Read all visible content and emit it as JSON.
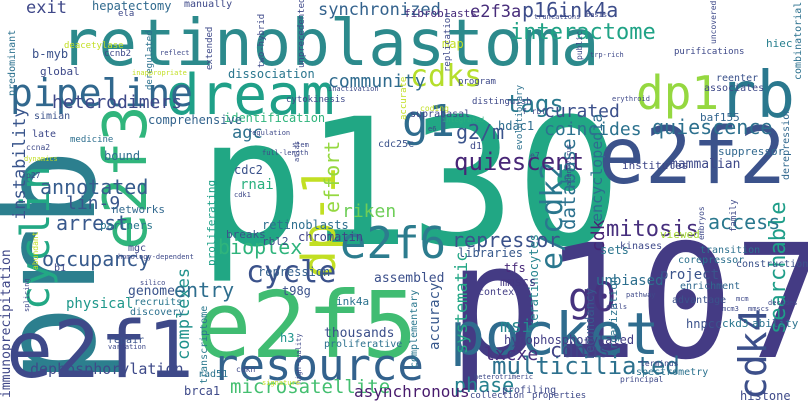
{
  "word_cloud": {
    "words": [
      {
        "text": "p130",
        "color": "#21a784"
      },
      {
        "text": "retinoblastoma",
        "color": "#2c8a8c"
      },
      {
        "text": "p107",
        "color": "#443b84"
      },
      {
        "text": "prb",
        "color": "#2c7f8e"
      },
      {
        "text": "e2f5",
        "color": "#40bc72"
      },
      {
        "text": "e2f2",
        "color": "#3b528b"
      },
      {
        "text": "e2f1",
        "color": "#3e4989"
      },
      {
        "text": "pocket",
        "color": "#2f6c8e"
      },
      {
        "text": "rb",
        "color": "#2a788e"
      },
      {
        "text": "dream",
        "color": "#1fa088"
      },
      {
        "text": "resource",
        "color": "#33628d"
      },
      {
        "text": "e2f3",
        "color": "#30b57c"
      },
      {
        "text": "dp-1",
        "color": "#c2df23"
      },
      {
        "text": "cyclin",
        "color": "#22a884"
      },
      {
        "text": "pipeline",
        "color": "#31688e"
      },
      {
        "text": "e2f6",
        "color": "#2c7c8e"
      },
      {
        "text": "g1",
        "color": "#2f6c8e"
      },
      {
        "text": "dp1",
        "color": "#95d840"
      },
      {
        "text": "cdk4",
        "color": "#3c4f8a"
      },
      {
        "text": "g0",
        "color": "#46337e"
      },
      {
        "text": "e/cdk2",
        "color": "#2a778e"
      },
      {
        "text": "cycle",
        "color": "#3b528b"
      },
      {
        "text": "quiescent",
        "color": "#482677"
      },
      {
        "text": "multiciliated",
        "color": "#2d718e"
      },
      {
        "text": "cdks",
        "color": "#b5de2b"
      },
      {
        "text": "e2f3a",
        "color": "#472c7a"
      },
      {
        "text": "synchronized",
        "color": "#33628d"
      },
      {
        "text": "interactome",
        "color": "#20a386"
      },
      {
        "text": "p16ink4a",
        "color": "#3d4d8a"
      },
      {
        "text": "tags",
        "color": "#29798e"
      },
      {
        "text": "quiescence",
        "color": "#2d708e"
      },
      {
        "text": "searchable",
        "color": "#1f9e89"
      },
      {
        "text": "mitosis",
        "color": "#472f7d"
      },
      {
        "text": "access",
        "color": "#2a788e"
      },
      {
        "text": "cdnas",
        "color": "#414487"
      },
      {
        "text": "phase",
        "color": "#26818e"
      },
      {
        "text": "lxcxe",
        "color": "#4a2f7f"
      },
      {
        "text": "msi",
        "color": "#24868e"
      },
      {
        "text": "cdk",
        "color": "#482475"
      },
      {
        "text": "bioplex",
        "color": "#2fb47c"
      },
      {
        "text": "arrest",
        "color": "#38588c"
      },
      {
        "text": "occupancy",
        "color": "#375a8c"
      },
      {
        "text": "annotated",
        "color": "#365c8d"
      },
      {
        "text": "repressor",
        "color": "#3b528b"
      },
      {
        "text": "microsatellite",
        "color": "#44bf70"
      },
      {
        "text": "dephosphorylation",
        "color": "#3e4a89"
      },
      {
        "text": "asynchronous",
        "color": "#481b6d"
      },
      {
        "text": "complexes",
        "color": "#20928c"
      },
      {
        "text": "entry",
        "color": "#2e6e8e"
      },
      {
        "text": "instability",
        "color": "#39558c"
      },
      {
        "text": "immunoprecipitation",
        "color": "#3f4788"
      },
      {
        "text": "heterodimers",
        "color": "#3e4989"
      },
      {
        "text": "community",
        "color": "#2f6b8e"
      },
      {
        "text": "curated",
        "color": "#3c508b"
      },
      {
        "text": "database",
        "color": "#2c718e"
      },
      {
        "text": "encyclopedia",
        "color": "#2e6d8e"
      },
      {
        "text": "coincides",
        "color": "#2c728e"
      },
      {
        "text": "g2/m",
        "color": "#3a548c"
      },
      {
        "text": "effort",
        "color": "#95d840"
      },
      {
        "text": "lin-9",
        "color": "#39558c"
      },
      {
        "text": "riken",
        "color": "#6ece58"
      },
      {
        "text": "agc",
        "color": "#2d718e"
      },
      {
        "text": "systematic",
        "color": "#22a785"
      },
      {
        "text": "accuracy",
        "color": "#38588c"
      },
      {
        "text": "exit",
        "color": "#3f4889"
      },
      {
        "text": "hepatectomy",
        "color": "#306a8e"
      },
      {
        "text": "genome",
        "color": "#3a538b"
      },
      {
        "text": "physical",
        "color": "#1f988b"
      },
      {
        "text": "unbiased",
        "color": "#2e6f8e"
      },
      {
        "text": "project",
        "color": "#3a538b"
      },
      {
        "text": "redundancy",
        "color": "#38588c"
      },
      {
        "text": "hypophosphorylated",
        "color": "#433e85"
      },
      {
        "text": "thousands",
        "color": "#3c4f8a"
      },
      {
        "text": "assembled",
        "color": "#3c508b"
      },
      {
        "text": "fibroblasts",
        "color": "#472a7a"
      },
      {
        "text": "retinoblasts",
        "color": "#2e6f8e"
      },
      {
        "text": "chromatin",
        "color": "#414487"
      },
      {
        "text": "identification",
        "color": "#2fb47c"
      },
      {
        "text": "dissociation",
        "color": "#2a768e"
      },
      {
        "text": "comprehensive",
        "color": "#33638d"
      },
      {
        "text": "mammalian",
        "color": "#3e4989"
      },
      {
        "text": "rnai",
        "color": "#2ab07f"
      },
      {
        "text": "cdc2",
        "color": "#3b528b"
      },
      {
        "text": "hdac1",
        "color": "#2e6d8e"
      },
      {
        "text": "keratinocytes",
        "color": "#25848e"
      },
      {
        "text": "mmscs",
        "color": "#453882"
      },
      {
        "text": "tfs",
        "color": "#482979"
      },
      {
        "text": "sets",
        "color": "#2b758e"
      },
      {
        "text": "libraries",
        "color": "#38598c"
      },
      {
        "text": "viewed",
        "color": "#a8db34"
      },
      {
        "text": "h3",
        "color": "#1f948c"
      },
      {
        "text": "brca1",
        "color": "#3e4a89"
      },
      {
        "text": "histone",
        "color": "#3e4a89"
      },
      {
        "text": "ability",
        "color": "#2c738e"
      },
      {
        "text": "ckd3",
        "color": "#2a768e"
      },
      {
        "text": "hnpcc",
        "color": "#3b528b"
      },
      {
        "text": "organization",
        "color": "#2c738e"
      },
      {
        "text": "hiec",
        "color": "#277f8e"
      },
      {
        "text": "suppressor",
        "color": "#31688e"
      },
      {
        "text": "institutes",
        "color": "#3f4788"
      },
      {
        "text": "baf155",
        "color": "#32648e"
      },
      {
        "text": "proliferating",
        "color": "#1fa188"
      },
      {
        "text": "networks",
        "color": "#31688e"
      },
      {
        "text": "partners",
        "color": "#2a768e"
      },
      {
        "text": "bound",
        "color": "#2e6e8e"
      },
      {
        "text": "medicine",
        "color": "#2e6f8e"
      },
      {
        "text": "breaks",
        "color": "#3a538b"
      },
      {
        "text": "rbl2",
        "color": "#3c4f8a"
      },
      {
        "text": "t98g",
        "color": "#3b528b"
      },
      {
        "text": "repression",
        "color": "#34608d"
      },
      {
        "text": "ink4a",
        "color": "#2c728e"
      },
      {
        "text": "transcriptome",
        "color": "#2a788e"
      },
      {
        "text": "proliferative",
        "color": "#2d708e"
      },
      {
        "text": "complementary",
        "color": "#2a778e"
      },
      {
        "text": "context",
        "color": "#433e85"
      },
      {
        "text": "profiling",
        "color": "#3e4989"
      },
      {
        "text": "spectrometry",
        "color": "#2c728e"
      },
      {
        "text": "advantage",
        "color": "#3b528b"
      },
      {
        "text": "corepressor",
        "color": "#2c718e"
      },
      {
        "text": "transition",
        "color": "#2d718e"
      },
      {
        "text": "enrichment",
        "color": "#31688e"
      },
      {
        "text": "reenter",
        "color": "#3b528b"
      },
      {
        "text": "associates",
        "color": "#3e4989"
      },
      {
        "text": "derepression",
        "color": "#31688e"
      },
      {
        "text": "combinatorial",
        "color": "#2c718e"
      },
      {
        "text": "construction",
        "color": "#3b528b"
      },
      {
        "text": "kinases",
        "color": "#3e4989"
      },
      {
        "text": "rad51",
        "color": "#2c738e"
      },
      {
        "text": "recruits",
        "color": "#2a768e"
      },
      {
        "text": "discovery",
        "color": "#2c718e"
      },
      {
        "text": "repair",
        "color": "#3b528b"
      },
      {
        "text": "mgc",
        "color": "#3e4989"
      },
      {
        "text": "b-myb",
        "color": "#3b528b"
      },
      {
        "text": "global",
        "color": "#3e4989"
      },
      {
        "text": "predominant",
        "color": "#2c718e"
      },
      {
        "text": "simian",
        "color": "#3b528b"
      },
      {
        "text": "late",
        "color": "#3e4989"
      },
      {
        "text": "b1",
        "color": "#3e4989"
      },
      {
        "text": "ccnb2",
        "color": "#3e4989"
      },
      {
        "text": "manually",
        "color": "#3e4989"
      },
      {
        "text": "ela",
        "color": "#3e4989"
      },
      {
        "text": "deregulated",
        "color": "#2c718e"
      },
      {
        "text": "two-hybrid",
        "color": "#3e4989"
      },
      {
        "text": "unprecedented",
        "color": "#3e4989"
      },
      {
        "text": "map",
        "color": "#c2df23"
      },
      {
        "text": "replication",
        "color": "#3e4989"
      },
      {
        "text": "cytokinesis",
        "color": "#3e4989"
      },
      {
        "text": "suprabasal",
        "color": "#3e4989"
      },
      {
        "text": "accurate",
        "color": "#c2df23"
      },
      {
        "text": "distinguish",
        "color": "#3e4989"
      },
      {
        "text": "program",
        "color": "#3e4989"
      },
      {
        "text": "coding",
        "color": "#c2df23"
      },
      {
        "text": "integrated",
        "color": "#2ab07f"
      },
      {
        "text": "evolutionary",
        "color": "#2c718e"
      },
      {
        "text": "d1",
        "color": "#3e4989"
      },
      {
        "text": "cdc25c",
        "color": "#3b528b"
      },
      {
        "text": "purifications",
        "color": "#3e4989"
      },
      {
        "text": "extended",
        "color": "#3e4989"
      },
      {
        "text": "public",
        "color": "#3e4989"
      },
      {
        "text": "family",
        "color": "#3e4989"
      },
      {
        "text": "embryos",
        "color": "#3e4989"
      },
      {
        "text": "uncovered",
        "color": "#3e4989"
      },
      {
        "text": "abundant",
        "color": "#c2df23"
      },
      {
        "text": "homology-dependent",
        "color": "#3e4989"
      },
      {
        "text": "cdkn",
        "color": "#3e4989"
      },
      {
        "text": "high-quality",
        "color": "#3e4989"
      },
      {
        "text": "signature",
        "color": "#c2df23"
      },
      {
        "text": "collection",
        "color": "#3e4989"
      },
      {
        "text": "properties",
        "color": "#3e4989"
      },
      {
        "text": "heterotrimeric",
        "color": "#3e4989"
      },
      {
        "text": "principal",
        "color": "#3e4989"
      },
      {
        "text": "terminus",
        "color": "#3e4989"
      },
      {
        "text": "mcm",
        "color": "#3e4989"
      },
      {
        "text": "mmscs",
        "color": "#3e4989"
      },
      {
        "text": "decades",
        "color": "#3e4989"
      },
      {
        "text": "silico",
        "color": "#3e4989"
      },
      {
        "text": "deacetylase",
        "color": "#c2df23"
      },
      {
        "text": "reflect",
        "color": "#3e4989"
      },
      {
        "text": "inappropriate",
        "color": "#c2df23"
      },
      {
        "text": "inactivation",
        "color": "#3e4989"
      },
      {
        "text": "stem",
        "color": "#3e4989"
      },
      {
        "text": "full-length",
        "color": "#3e4989"
      },
      {
        "text": "regulation",
        "color": "#3e4989"
      },
      {
        "text": "variation",
        "color": "#3e4989"
      },
      {
        "text": "splicing",
        "color": "#3e4989"
      },
      {
        "text": "p27",
        "color": "#3e4989"
      },
      {
        "text": "ccna2",
        "color": "#3e4989"
      },
      {
        "text": "dynamics",
        "color": "#c2df23"
      },
      {
        "text": "trp-rich",
        "color": "#3e4989"
      },
      {
        "text": "erythroid",
        "color": "#3e4989"
      },
      {
        "text": "basis",
        "color": "#3e4989"
      },
      {
        "text": "truncations",
        "color": "#3e4989"
      },
      {
        "text": "f rbf",
        "color": "#3e4989"
      },
      {
        "text": "adenovirus",
        "color": "#3e4989"
      },
      {
        "text": "e7",
        "color": "#3e4989"
      },
      {
        "text": "atlas",
        "color": "#3e4989"
      },
      {
        "text": "cdk1",
        "color": "#3e4989"
      },
      {
        "text": "mcm3",
        "color": "#3e4989"
      },
      {
        "text": "e6",
        "color": "#3e4989"
      },
      {
        "text": "cells",
        "color": "#3e4989"
      },
      {
        "text": "pathway",
        "color": "#3e4989"
      }
    ]
  }
}
